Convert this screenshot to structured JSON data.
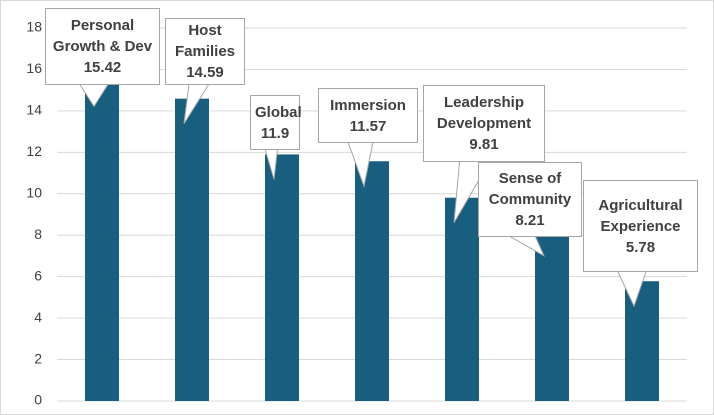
{
  "chart_data": {
    "type": "bar",
    "categories": [
      "Personal Growth & Dev",
      "Host Families",
      "Global",
      "Immersion",
      "Leadership Development",
      "Sense of Community",
      "Agricultural Experience"
    ],
    "values": [
      15.42,
      14.59,
      11.9,
      11.57,
      9.81,
      8.21,
      5.78
    ],
    "color": "#175e7f",
    "ylim": [
      0,
      18
    ],
    "yticks": [
      0,
      2,
      4,
      6,
      8,
      10,
      12,
      14,
      16,
      18
    ],
    "grid": true
  }
}
